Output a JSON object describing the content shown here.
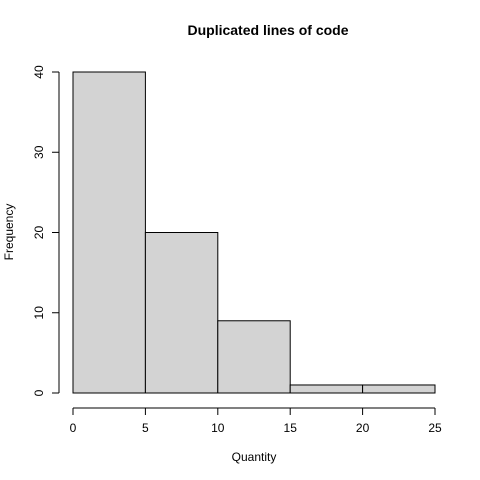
{
  "chart_data": {
    "type": "bar",
    "title": "Duplicated lines of code",
    "xlabel": "Quantity",
    "ylabel": "Frequency",
    "bins": [
      {
        "start": 0,
        "end": 5,
        "count": 40
      },
      {
        "start": 5,
        "end": 10,
        "count": 20
      },
      {
        "start": 10,
        "end": 15,
        "count": 9
      },
      {
        "start": 15,
        "end": 20,
        "count": 1
      },
      {
        "start": 20,
        "end": 25,
        "count": 1
      }
    ],
    "x_ticks": [
      0,
      5,
      10,
      15,
      20,
      25
    ],
    "y_ticks": [
      0,
      10,
      20,
      30,
      40
    ],
    "xlim": [
      0,
      25
    ],
    "ylim": [
      0,
      40
    ],
    "grid": false,
    "legend": "none",
    "bar_fill": "#d3d3d3",
    "bar_stroke": "#000000"
  }
}
